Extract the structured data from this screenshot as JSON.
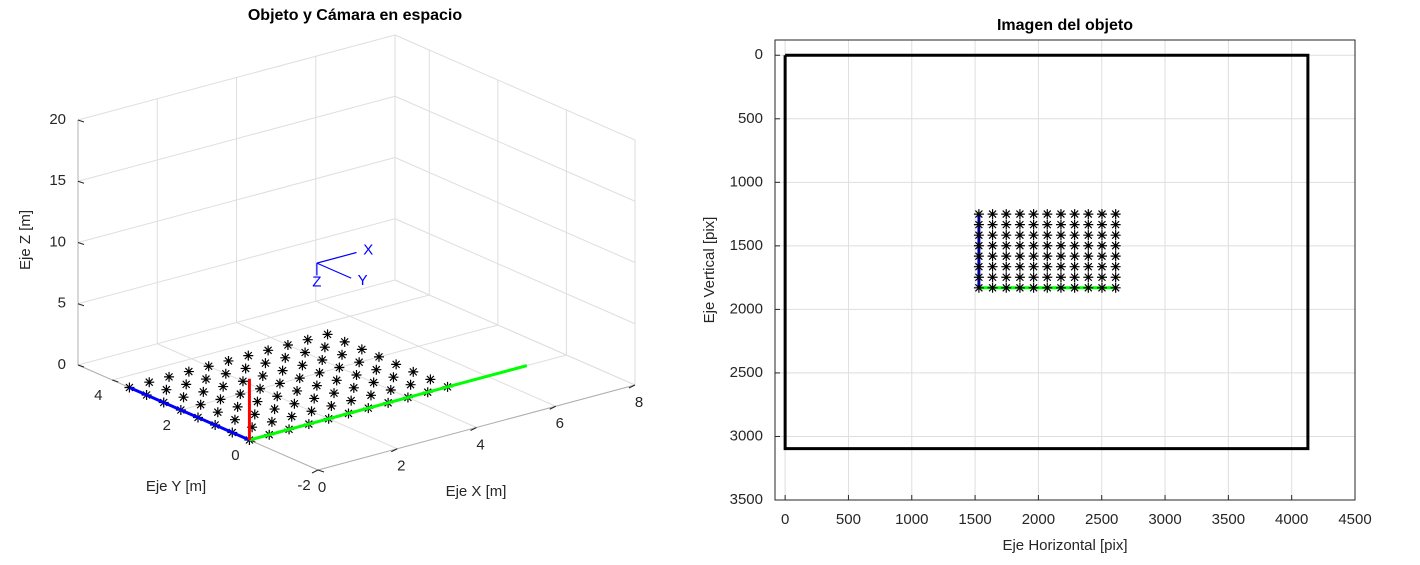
{
  "chart_data": [
    {
      "type": "scatter3d",
      "title": "Objeto y Cámara en espacio",
      "xlabel": "Eje X [m]",
      "ylabel": "Eje Y [m]",
      "zlabel": "Eje Z [m]",
      "xlim": [
        0,
        8
      ],
      "ylim": [
        -2,
        5
      ],
      "zlim": [
        0,
        20
      ],
      "xticks": [
        0,
        2,
        4,
        6,
        8
      ],
      "yticks": [
        -2,
        0,
        2,
        4
      ],
      "zticks": [
        0,
        5,
        10,
        15,
        20
      ],
      "grid": true,
      "marker_color": "#000000",
      "point_x": [
        0,
        0.5,
        1,
        1.5,
        2,
        2.5,
        3,
        3.5,
        4,
        4.5,
        5
      ],
      "point_y": [
        0,
        0.5,
        1,
        1.5,
        2,
        2.5,
        3,
        3.5
      ],
      "lines": [
        {
          "color": "#0000ff",
          "x": [
            0,
            0
          ],
          "y": [
            0,
            3.5
          ],
          "z": [
            0,
            0
          ]
        },
        {
          "color": "#00ff00",
          "x": [
            0,
            7
          ],
          "y": [
            0,
            0
          ],
          "z": [
            0,
            0
          ]
        },
        {
          "color": "#ff0000",
          "x": [
            0,
            0
          ],
          "y": [
            0,
            0
          ],
          "z": [
            0,
            5
          ]
        }
      ],
      "camera": {
        "color": "#0000ff",
        "position": [
          3,
          1.5,
          10
        ],
        "axes": [
          {
            "label": "X",
            "direction": [
              1,
              0,
              0
            ]
          },
          {
            "label": "Y",
            "direction": [
              0,
              -1,
              0
            ]
          },
          {
            "label": "Z",
            "direction": [
              0,
              0,
              -1
            ]
          }
        ]
      }
    },
    {
      "type": "scatter",
      "title": "Imagen del objeto",
      "xlabel": "Eje Horizontal [pix]",
      "ylabel": "Eje Vertical [pix]",
      "xlim": [
        -80,
        4500
      ],
      "ylim": [
        -120,
        3500
      ],
      "y_reversed": true,
      "xticks": [
        0,
        500,
        1000,
        1500,
        2000,
        2500,
        3000,
        3500,
        4000,
        4500
      ],
      "yticks": [
        0,
        500,
        1000,
        1500,
        2000,
        2500,
        3000,
        3500
      ],
      "grid": true,
      "marker_color": "#000000",
      "point_x": [
        1530,
        1638,
        1746,
        1854,
        1962,
        2070,
        2178,
        2286,
        2394,
        2502,
        2610
      ],
      "point_y": [
        1250,
        1333,
        1416,
        1499,
        1581,
        1664,
        1747,
        1830
      ],
      "lines": [
        {
          "color": "#000000",
          "x": [
            0,
            4128,
            4128,
            0,
            0
          ],
          "y": [
            0,
            0,
            3096,
            3096,
            0
          ]
        },
        {
          "color": "#0000ff",
          "x": [
            1530,
            1530
          ],
          "y": [
            1250,
            1830
          ]
        },
        {
          "color": "#00ff00",
          "x": [
            1530,
            2610
          ],
          "y": [
            1830,
            1830
          ]
        }
      ]
    }
  ]
}
